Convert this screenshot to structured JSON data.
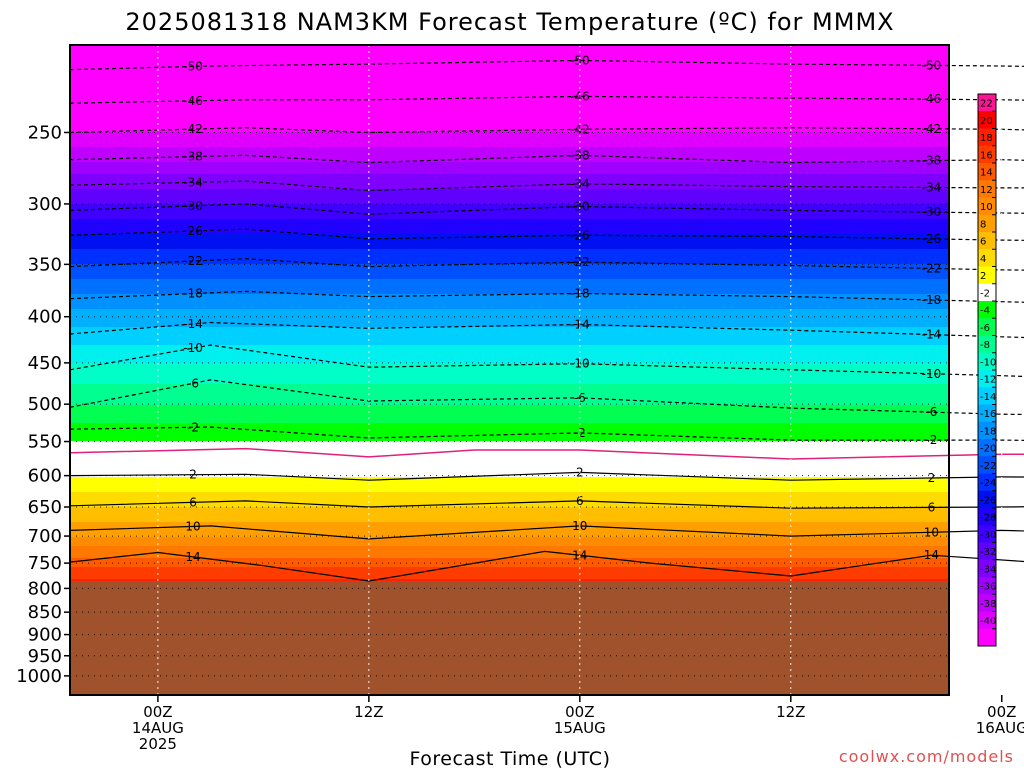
{
  "title": "2025081318 NAM3KM Forecast Temperature (ºC) for MMMX",
  "xlabel": "Forecast Time (UTC)",
  "credit": "coolwx.com/models",
  "colors": {
    "credit": "#e05050",
    "ground": "#a0522d",
    "freezing_contour": "#e0207a"
  },
  "chart_data": {
    "type": "heatmap",
    "title": "2025081318 NAM3KM Forecast Temperature (ºC) for MMMX",
    "xlabel": "Forecast Time (UTC)",
    "ylabel": "",
    "y_scale": "log-pressure",
    "y_inverted": true,
    "ylim": [
      1050,
      200
    ],
    "xlim_hours": [
      -5,
      45
    ],
    "y_ticks": [
      {
        "value": 250,
        "label": "250"
      },
      {
        "value": 300,
        "label": "300"
      },
      {
        "value": 350,
        "label": "350"
      },
      {
        "value": 400,
        "label": "400"
      },
      {
        "value": 450,
        "label": "450"
      },
      {
        "value": 500,
        "label": "500"
      },
      {
        "value": 550,
        "label": "550"
      },
      {
        "value": 600,
        "label": "600"
      },
      {
        "value": 650,
        "label": "650"
      },
      {
        "value": 700,
        "label": "700"
      },
      {
        "value": 750,
        "label": "750"
      },
      {
        "value": 800,
        "label": "800"
      },
      {
        "value": 850,
        "label": "850"
      },
      {
        "value": 900,
        "label": "900"
      },
      {
        "value": 950,
        "label": "950"
      },
      {
        "value": 1000,
        "label": "1000"
      }
    ],
    "x_ticks": [
      {
        "hour": 0,
        "lines": [
          "00Z",
          "14AUG",
          "2025"
        ]
      },
      {
        "hour": 12,
        "lines": [
          "12Z"
        ]
      },
      {
        "hour": 24,
        "lines": [
          "00Z",
          "15AUG"
        ]
      },
      {
        "hour": 36,
        "lines": [
          "12Z"
        ]
      },
      {
        "hour": 48,
        "lines": [
          "00Z",
          "16AUG"
        ]
      }
    ],
    "grid": true,
    "surface_pressure": 785,
    "colorbar": {
      "labels": [
        "22",
        "20",
        "18",
        "16",
        "14",
        "12",
        "10",
        "8",
        "6",
        "4",
        "2",
        "-2",
        "-4",
        "-6",
        "-8",
        "-10",
        "-12",
        "-14",
        "-16",
        "-18",
        "-20",
        "-22",
        "-24",
        "-26",
        "-28",
        "-30",
        "-32",
        "-34",
        "-36",
        "-38",
        "-40"
      ],
      "colors": [
        "#ff1493",
        "#ff0000",
        "#ff2000",
        "#ff3c00",
        "#ff5a00",
        "#ff7800",
        "#ff8c00",
        "#ffa000",
        "#ffbe00",
        "#ffdc00",
        "#ffff00",
        "#ffffff",
        "#00ff00",
        "#00ff50",
        "#00ff90",
        "#00ffc8",
        "#00f0f0",
        "#00d0ff",
        "#00b0ff",
        "#0090ff",
        "#0070ff",
        "#0050ff",
        "#0030ff",
        "#0010f0",
        "#2000ff",
        "#4000ff",
        "#6000ff",
        "#8000ff",
        "#a000ff",
        "#c000ff",
        "#e000ff",
        "#ff00ff"
      ]
    },
    "profile_00z": [
      {
        "pressure": 780,
        "temp": 18
      },
      {
        "pressure": 750,
        "temp": 15
      },
      {
        "pressure": 700,
        "temp": 10
      },
      {
        "pressure": 650,
        "temp": 6
      },
      {
        "pressure": 600,
        "temp": 2
      },
      {
        "pressure": 560,
        "temp": -1
      },
      {
        "pressure": 500,
        "temp": -6
      },
      {
        "pressure": 450,
        "temp": -10
      },
      {
        "pressure": 400,
        "temp": -15
      },
      {
        "pressure": 350,
        "temp": -22
      },
      {
        "pressure": 300,
        "temp": -30
      },
      {
        "pressure": 250,
        "temp": -40
      },
      {
        "pressure": 210,
        "temp": -50
      }
    ],
    "contours": [
      {
        "value": -50,
        "style": "dashed",
        "label": "-50",
        "points": [
          [
            -5,
            213
          ],
          [
            3,
            211
          ],
          [
            12,
            210
          ],
          [
            24,
            208
          ],
          [
            36,
            210
          ],
          [
            48,
            211
          ],
          [
            55,
            212
          ]
        ]
      },
      {
        "value": -46,
        "style": "dashed",
        "label": "-46",
        "points": [
          [
            -5,
            232
          ],
          [
            5,
            230
          ],
          [
            12,
            230
          ],
          [
            24,
            228
          ],
          [
            36,
            229
          ],
          [
            48,
            230
          ],
          [
            55,
            231
          ]
        ]
      },
      {
        "value": -42,
        "style": "dashed",
        "label": "-42",
        "points": [
          [
            -5,
            250
          ],
          [
            5,
            247
          ],
          [
            12,
            250
          ],
          [
            24,
            248
          ],
          [
            36,
            247
          ],
          [
            48,
            248
          ],
          [
            55,
            250
          ]
        ]
      },
      {
        "value": -38,
        "style": "dashed",
        "label": "-38",
        "points": [
          [
            -5,
            268
          ],
          [
            5,
            265
          ],
          [
            12,
            270
          ],
          [
            24,
            265
          ],
          [
            36,
            270
          ],
          [
            48,
            268
          ],
          [
            55,
            270
          ]
        ]
      },
      {
        "value": -34,
        "style": "dashed",
        "label": "-34",
        "points": [
          [
            -5,
            286
          ],
          [
            5,
            283
          ],
          [
            12,
            290
          ],
          [
            24,
            285
          ],
          [
            36,
            287
          ],
          [
            48,
            288
          ],
          [
            55,
            288
          ]
        ]
      },
      {
        "value": -30,
        "style": "dashed",
        "label": "-30",
        "points": [
          [
            -5,
            305
          ],
          [
            5,
            300
          ],
          [
            12,
            308
          ],
          [
            24,
            302
          ],
          [
            36,
            305
          ],
          [
            48,
            307
          ],
          [
            55,
            308
          ]
        ]
      },
      {
        "value": -26,
        "style": "dashed",
        "label": "-26",
        "points": [
          [
            -5,
            325
          ],
          [
            5,
            320
          ],
          [
            12,
            328
          ],
          [
            24,
            325
          ],
          [
            36,
            326
          ],
          [
            48,
            329
          ],
          [
            55,
            330
          ]
        ]
      },
      {
        "value": -22,
        "style": "dashed",
        "label": "-22",
        "points": [
          [
            -5,
            352
          ],
          [
            5,
            345
          ],
          [
            12,
            352
          ],
          [
            24,
            348
          ],
          [
            36,
            351
          ],
          [
            48,
            355
          ],
          [
            55,
            356
          ]
        ]
      },
      {
        "value": -18,
        "style": "dashed",
        "label": "-18",
        "points": [
          [
            -5,
            382
          ],
          [
            5,
            375
          ],
          [
            12,
            380
          ],
          [
            24,
            377
          ],
          [
            36,
            380
          ],
          [
            48,
            385
          ],
          [
            55,
            388
          ]
        ]
      },
      {
        "value": -14,
        "style": "dashed",
        "label": "-14",
        "points": [
          [
            -5,
            418
          ],
          [
            3,
            406
          ],
          [
            12,
            412
          ],
          [
            24,
            408
          ],
          [
            36,
            414
          ],
          [
            48,
            421
          ],
          [
            55,
            425
          ]
        ]
      },
      {
        "value": -10,
        "style": "dashed",
        "label": "-10",
        "points": [
          [
            -5,
            458
          ],
          [
            3,
            430
          ],
          [
            12,
            455
          ],
          [
            24,
            451
          ],
          [
            36,
            458
          ],
          [
            48,
            465
          ],
          [
            55,
            470
          ]
        ]
      },
      {
        "value": -6,
        "style": "dashed",
        "label": "-6",
        "points": [
          [
            -5,
            504
          ],
          [
            3,
            470
          ],
          [
            12,
            496
          ],
          [
            24,
            492
          ],
          [
            36,
            505
          ],
          [
            48,
            513
          ],
          [
            55,
            515
          ]
        ]
      },
      {
        "value": -2,
        "style": "dashed",
        "label": "-2",
        "points": [
          [
            -5,
            533
          ],
          [
            3,
            530
          ],
          [
            12,
            545
          ],
          [
            24,
            538
          ],
          [
            36,
            548
          ],
          [
            48,
            548
          ],
          [
            55,
            550
          ]
        ]
      },
      {
        "value": 0,
        "style": "solid-pink",
        "label": "",
        "points": [
          [
            -5,
            566
          ],
          [
            5,
            560
          ],
          [
            12,
            572
          ],
          [
            18,
            562
          ],
          [
            24,
            562
          ],
          [
            36,
            575
          ],
          [
            48,
            568
          ],
          [
            55,
            568
          ]
        ]
      },
      {
        "value": 2,
        "style": "solid",
        "label": "2",
        "points": [
          [
            -5,
            600
          ],
          [
            5,
            598
          ],
          [
            12,
            607
          ],
          [
            24,
            595
          ],
          [
            36,
            607
          ],
          [
            48,
            602
          ],
          [
            55,
            603
          ]
        ]
      },
      {
        "value": 6,
        "style": "solid",
        "label": "6",
        "points": [
          [
            -5,
            648
          ],
          [
            5,
            640
          ],
          [
            12,
            650
          ],
          [
            24,
            640
          ],
          [
            36,
            652
          ],
          [
            48,
            650
          ],
          [
            55,
            648
          ]
        ]
      },
      {
        "value": 10,
        "style": "solid",
        "label": "10",
        "points": [
          [
            -5,
            690
          ],
          [
            3,
            682
          ],
          [
            12,
            705
          ],
          [
            24,
            682
          ],
          [
            36,
            700
          ],
          [
            48,
            690
          ],
          [
            55,
            695
          ]
        ]
      },
      {
        "value": 14,
        "style": "solid",
        "label": "14",
        "points": [
          [
            -5,
            748
          ],
          [
            0,
            730
          ],
          [
            6,
            755
          ],
          [
            12,
            785
          ],
          [
            22,
            728
          ],
          [
            28,
            750
          ],
          [
            36,
            775
          ],
          [
            44,
            735
          ],
          [
            55,
            760
          ]
        ]
      }
    ]
  }
}
